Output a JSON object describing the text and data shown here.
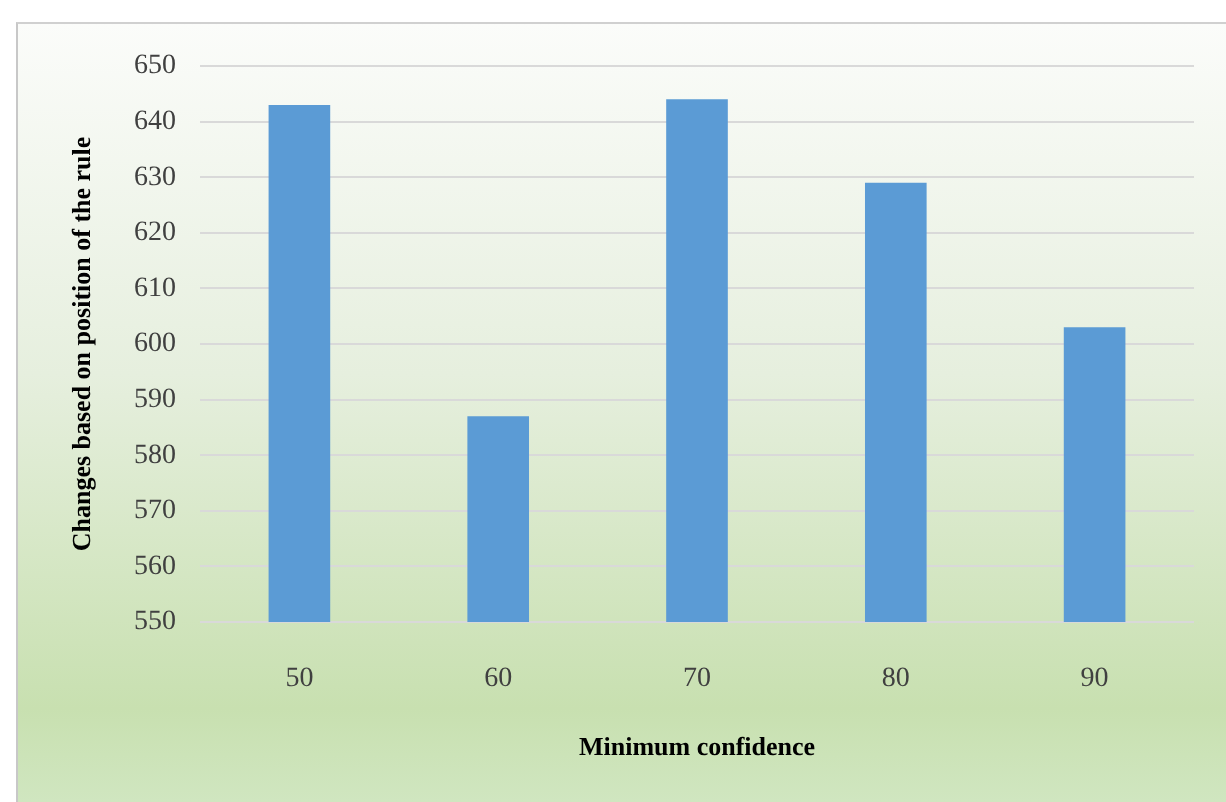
{
  "chart_data": {
    "type": "bar",
    "xlabel": "Minimum confidence",
    "ylabel": "Changes based on position of the rule",
    "categories": [
      "50",
      "60",
      "70",
      "80",
      "90"
    ],
    "values": [
      643,
      587,
      644,
      629,
      603
    ],
    "color": "#5b9bd5",
    "ylim": [
      550,
      650
    ],
    "yticks": [
      550,
      560,
      570,
      580,
      590,
      600,
      610,
      620,
      630,
      640,
      650
    ],
    "grid": "y"
  }
}
